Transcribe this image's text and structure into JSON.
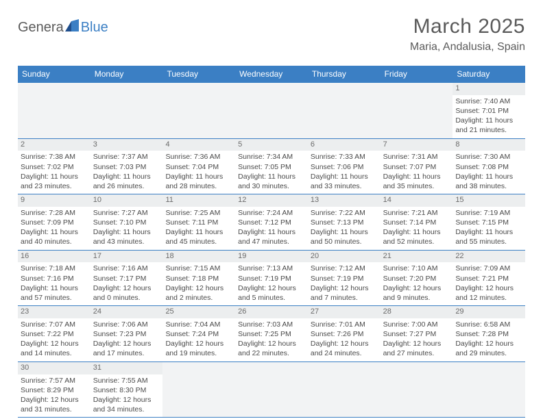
{
  "logo": {
    "text_a": "Genera",
    "text_b": "Blue"
  },
  "title": "March 2025",
  "location": "Maria, Andalusia, Spain",
  "colors": {
    "header_bg": "#3b7fc4",
    "header_text": "#ffffff",
    "day_num_bg": "#eceeef",
    "blank_bg": "#f2f3f4",
    "row_border": "#3b7fc4",
    "text": "#4a4a4a",
    "title_text": "#5a5a5a"
  },
  "weekdays": [
    "Sunday",
    "Monday",
    "Tuesday",
    "Wednesday",
    "Thursday",
    "Friday",
    "Saturday"
  ],
  "weeks": [
    [
      {
        "blank": true
      },
      {
        "blank": true
      },
      {
        "blank": true
      },
      {
        "blank": true
      },
      {
        "blank": true
      },
      {
        "blank": true
      },
      {
        "n": "1",
        "sr": "Sunrise: 7:40 AM",
        "ss": "Sunset: 7:01 PM",
        "d1": "Daylight: 11 hours",
        "d2": "and 21 minutes."
      }
    ],
    [
      {
        "n": "2",
        "sr": "Sunrise: 7:38 AM",
        "ss": "Sunset: 7:02 PM",
        "d1": "Daylight: 11 hours",
        "d2": "and 23 minutes."
      },
      {
        "n": "3",
        "sr": "Sunrise: 7:37 AM",
        "ss": "Sunset: 7:03 PM",
        "d1": "Daylight: 11 hours",
        "d2": "and 26 minutes."
      },
      {
        "n": "4",
        "sr": "Sunrise: 7:36 AM",
        "ss": "Sunset: 7:04 PM",
        "d1": "Daylight: 11 hours",
        "d2": "and 28 minutes."
      },
      {
        "n": "5",
        "sr": "Sunrise: 7:34 AM",
        "ss": "Sunset: 7:05 PM",
        "d1": "Daylight: 11 hours",
        "d2": "and 30 minutes."
      },
      {
        "n": "6",
        "sr": "Sunrise: 7:33 AM",
        "ss": "Sunset: 7:06 PM",
        "d1": "Daylight: 11 hours",
        "d2": "and 33 minutes."
      },
      {
        "n": "7",
        "sr": "Sunrise: 7:31 AM",
        "ss": "Sunset: 7:07 PM",
        "d1": "Daylight: 11 hours",
        "d2": "and 35 minutes."
      },
      {
        "n": "8",
        "sr": "Sunrise: 7:30 AM",
        "ss": "Sunset: 7:08 PM",
        "d1": "Daylight: 11 hours",
        "d2": "and 38 minutes."
      }
    ],
    [
      {
        "n": "9",
        "sr": "Sunrise: 7:28 AM",
        "ss": "Sunset: 7:09 PM",
        "d1": "Daylight: 11 hours",
        "d2": "and 40 minutes."
      },
      {
        "n": "10",
        "sr": "Sunrise: 7:27 AM",
        "ss": "Sunset: 7:10 PM",
        "d1": "Daylight: 11 hours",
        "d2": "and 43 minutes."
      },
      {
        "n": "11",
        "sr": "Sunrise: 7:25 AM",
        "ss": "Sunset: 7:11 PM",
        "d1": "Daylight: 11 hours",
        "d2": "and 45 minutes."
      },
      {
        "n": "12",
        "sr": "Sunrise: 7:24 AM",
        "ss": "Sunset: 7:12 PM",
        "d1": "Daylight: 11 hours",
        "d2": "and 47 minutes."
      },
      {
        "n": "13",
        "sr": "Sunrise: 7:22 AM",
        "ss": "Sunset: 7:13 PM",
        "d1": "Daylight: 11 hours",
        "d2": "and 50 minutes."
      },
      {
        "n": "14",
        "sr": "Sunrise: 7:21 AM",
        "ss": "Sunset: 7:14 PM",
        "d1": "Daylight: 11 hours",
        "d2": "and 52 minutes."
      },
      {
        "n": "15",
        "sr": "Sunrise: 7:19 AM",
        "ss": "Sunset: 7:15 PM",
        "d1": "Daylight: 11 hours",
        "d2": "and 55 minutes."
      }
    ],
    [
      {
        "n": "16",
        "sr": "Sunrise: 7:18 AM",
        "ss": "Sunset: 7:16 PM",
        "d1": "Daylight: 11 hours",
        "d2": "and 57 minutes."
      },
      {
        "n": "17",
        "sr": "Sunrise: 7:16 AM",
        "ss": "Sunset: 7:17 PM",
        "d1": "Daylight: 12 hours",
        "d2": "and 0 minutes."
      },
      {
        "n": "18",
        "sr": "Sunrise: 7:15 AM",
        "ss": "Sunset: 7:18 PM",
        "d1": "Daylight: 12 hours",
        "d2": "and 2 minutes."
      },
      {
        "n": "19",
        "sr": "Sunrise: 7:13 AM",
        "ss": "Sunset: 7:19 PM",
        "d1": "Daylight: 12 hours",
        "d2": "and 5 minutes."
      },
      {
        "n": "20",
        "sr": "Sunrise: 7:12 AM",
        "ss": "Sunset: 7:19 PM",
        "d1": "Daylight: 12 hours",
        "d2": "and 7 minutes."
      },
      {
        "n": "21",
        "sr": "Sunrise: 7:10 AM",
        "ss": "Sunset: 7:20 PM",
        "d1": "Daylight: 12 hours",
        "d2": "and 9 minutes."
      },
      {
        "n": "22",
        "sr": "Sunrise: 7:09 AM",
        "ss": "Sunset: 7:21 PM",
        "d1": "Daylight: 12 hours",
        "d2": "and 12 minutes."
      }
    ],
    [
      {
        "n": "23",
        "sr": "Sunrise: 7:07 AM",
        "ss": "Sunset: 7:22 PM",
        "d1": "Daylight: 12 hours",
        "d2": "and 14 minutes."
      },
      {
        "n": "24",
        "sr": "Sunrise: 7:06 AM",
        "ss": "Sunset: 7:23 PM",
        "d1": "Daylight: 12 hours",
        "d2": "and 17 minutes."
      },
      {
        "n": "25",
        "sr": "Sunrise: 7:04 AM",
        "ss": "Sunset: 7:24 PM",
        "d1": "Daylight: 12 hours",
        "d2": "and 19 minutes."
      },
      {
        "n": "26",
        "sr": "Sunrise: 7:03 AM",
        "ss": "Sunset: 7:25 PM",
        "d1": "Daylight: 12 hours",
        "d2": "and 22 minutes."
      },
      {
        "n": "27",
        "sr": "Sunrise: 7:01 AM",
        "ss": "Sunset: 7:26 PM",
        "d1": "Daylight: 12 hours",
        "d2": "and 24 minutes."
      },
      {
        "n": "28",
        "sr": "Sunrise: 7:00 AM",
        "ss": "Sunset: 7:27 PM",
        "d1": "Daylight: 12 hours",
        "d2": "and 27 minutes."
      },
      {
        "n": "29",
        "sr": "Sunrise: 6:58 AM",
        "ss": "Sunset: 7:28 PM",
        "d1": "Daylight: 12 hours",
        "d2": "and 29 minutes."
      }
    ],
    [
      {
        "n": "30",
        "sr": "Sunrise: 7:57 AM",
        "ss": "Sunset: 8:29 PM",
        "d1": "Daylight: 12 hours",
        "d2": "and 31 minutes."
      },
      {
        "n": "31",
        "sr": "Sunrise: 7:55 AM",
        "ss": "Sunset: 8:30 PM",
        "d1": "Daylight: 12 hours",
        "d2": "and 34 minutes."
      },
      {
        "blank": true
      },
      {
        "blank": true
      },
      {
        "blank": true
      },
      {
        "blank": true
      },
      {
        "blank": true
      }
    ]
  ]
}
